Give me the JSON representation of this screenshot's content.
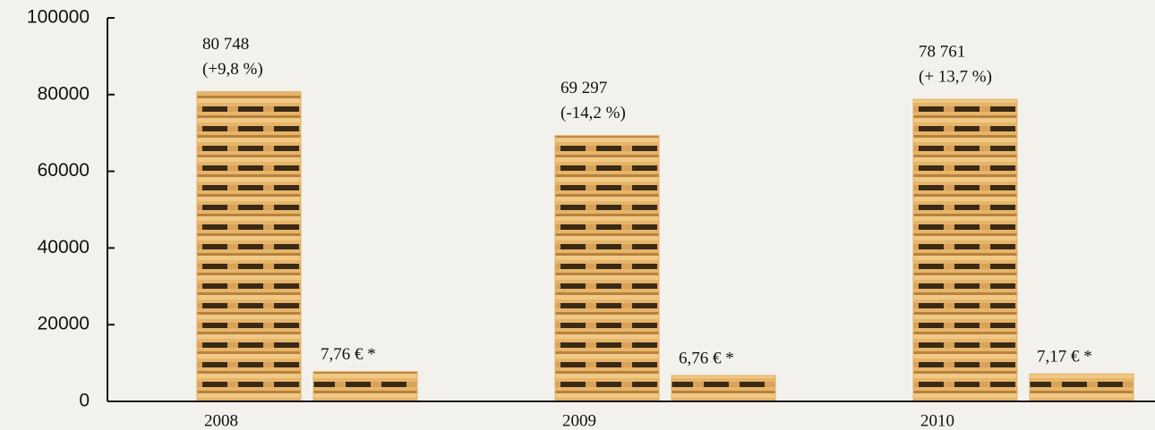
{
  "chart_data": {
    "type": "bar",
    "categories": [
      "2008",
      "2009",
      "2010"
    ],
    "series": [
      {
        "color": "#e3b063",
        "values": [
          80748,
          69297,
          78761
        ],
        "value_labels": [
          "80 748",
          "69 297",
          "78 761"
        ],
        "changes": [
          "(+9,8 %)",
          "(-14,2 %)",
          "(+ 13,7 %)"
        ]
      },
      {
        "color": "#e3b063",
        "axis": "y2",
        "values": [
          7.76,
          6.76,
          7.17
        ],
        "value_labels": [
          "7,76 € *",
          "6,76 € *",
          "7,17 € *"
        ]
      }
    ],
    "ylim": [
      0,
      100000
    ],
    "yticks": [
      0,
      20000,
      40000,
      60000,
      80000,
      100000
    ],
    "y2lim": [
      0,
      100
    ]
  }
}
